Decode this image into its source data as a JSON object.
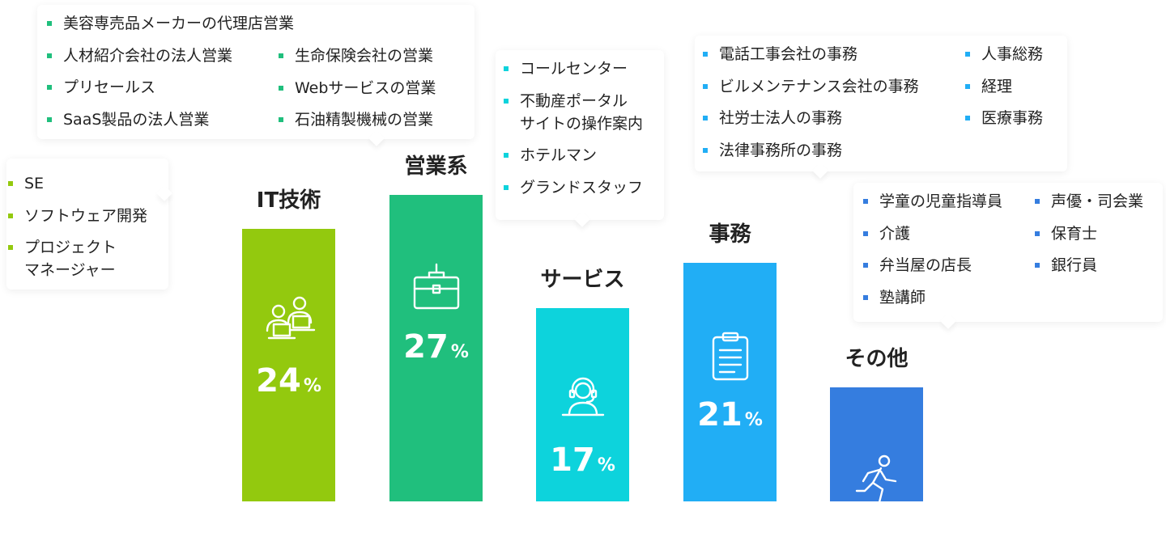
{
  "chart_data": {
    "type": "bar",
    "title": "",
    "xlabel": "",
    "ylabel": "",
    "categories": [
      "IT技術",
      "営業系",
      "サービス",
      "事務",
      "その他"
    ],
    "values": [
      24,
      27,
      17,
      21,
      10
    ],
    "unit": "%",
    "colors": [
      "#93c90e",
      "#20bf7d",
      "#0dd3dc",
      "#21aef5",
      "#357ddf"
    ],
    "icons": [
      "two-people-laptops-icon",
      "briefcase-icon",
      "headset-operator-icon",
      "clipboard-icon",
      "running-person-icon"
    ],
    "ylim": [
      0,
      30
    ],
    "grid": false,
    "legend": "none",
    "annotations": [
      [
        "SE",
        "ソフトウェア開発",
        "プロジェクト\nマネージャー"
      ],
      [
        "美容専売品メーカーの代理店営業",
        "人材紹介会社の法人営業",
        "プリセールス",
        "SaaS製品の法人営業",
        "生命保険会社の営業",
        "Webサービスの営業",
        "石油精製機械の営業"
      ],
      [
        "コールセンター",
        "不動産ポータル\nサイトの操作案内",
        "ホテルマン",
        "グランドスタッフ"
      ],
      [
        "電話工事会社の事務",
        "ビルメンテナンス会社の事務",
        "社労士法人の事務",
        "法律事務所の事務",
        "人事総務",
        "経理",
        "医療事務"
      ],
      [
        "学童の児童指導員",
        "介護",
        "弁当屋の店長",
        "塾講師",
        "声優・司会業",
        "保育士",
        "銀行員"
      ]
    ]
  }
}
